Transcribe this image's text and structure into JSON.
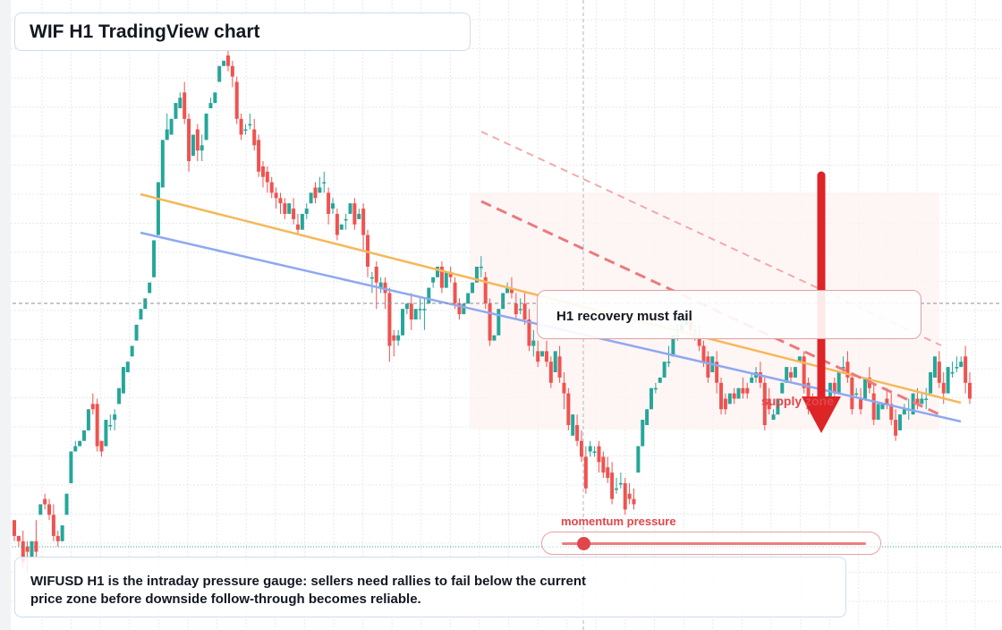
{
  "header": {
    "title": "WIF H1 TradingView chart"
  },
  "annotations": {
    "callout": "H1 recovery must fail",
    "supply_label": "supply zone",
    "momentum_label": "momentum pressure",
    "description": "WIFUSD H1 is the intraday pressure gauge: sellers need rallies to fail below the current price zone before downside follow-through becomes reliable."
  },
  "momentum": {
    "level": 0.07
  },
  "colors": {
    "up": "#26a69a",
    "down": "#ef5350",
    "orange_line": "#f5b85a",
    "blue_line": "#8fa8f0",
    "bear_arrow": "#dd2426",
    "supply_zone": "#fdf3f1",
    "grid": "#e6e9ef"
  },
  "chart_data": {
    "type": "candlestick",
    "symbol": "WIFUSD",
    "timeframe": "H1",
    "ylim": [
      0,
      100
    ],
    "candles": [
      [
        12,
        12,
        9,
        8
      ],
      [
        9,
        9,
        8,
        7
      ],
      [
        8,
        10,
        4,
        3
      ],
      [
        7,
        8,
        6,
        2
      ],
      [
        5,
        5,
        8,
        9
      ],
      [
        8,
        12,
        6,
        5
      ],
      [
        13,
        14,
        15,
        16
      ],
      [
        16,
        17,
        15,
        14
      ],
      [
        15,
        16,
        13,
        12
      ],
      [
        13,
        15,
        9,
        8
      ],
      [
        9,
        10,
        8,
        7
      ],
      [
        8,
        9,
        11,
        14
      ],
      [
        13,
        15,
        17,
        18
      ],
      [
        19,
        20,
        25,
        26
      ],
      [
        25,
        27,
        26,
        25
      ],
      [
        26,
        27,
        27,
        28
      ],
      [
        27,
        29,
        29,
        30
      ],
      [
        29,
        32,
        33,
        35
      ],
      [
        34,
        36,
        33,
        32
      ],
      [
        34,
        35,
        26,
        25
      ],
      [
        27,
        27,
        25,
        24
      ],
      [
        26,
        27,
        31,
        32
      ],
      [
        30,
        32,
        30,
        29
      ],
      [
        31,
        33,
        32,
        29
      ],
      [
        34,
        35,
        37,
        37
      ],
      [
        36,
        37,
        41,
        41
      ],
      [
        40,
        42,
        42,
        44
      ],
      [
        43,
        44,
        45,
        46
      ],
      [
        46,
        48,
        49,
        51
      ],
      [
        50,
        51,
        52,
        52
      ],
      [
        52,
        54,
        54,
        55
      ],
      [
        55,
        56,
        57,
        60
      ],
      [
        58,
        60,
        65,
        66
      ],
      [
        66,
        70,
        76,
        76
      ],
      [
        75,
        80,
        84,
        84
      ],
      [
        84,
        89,
        86,
        86
      ],
      [
        85,
        88,
        88,
        90
      ],
      [
        88,
        89,
        91,
        91
      ],
      [
        90,
        93,
        92,
        93
      ],
      [
        93,
        95,
        88,
        87
      ],
      [
        88,
        89,
        80,
        78
      ],
      [
        81,
        82,
        85,
        86
      ],
      [
        86,
        87,
        82,
        80
      ],
      [
        82,
        85,
        83,
        80
      ],
      [
        84,
        88,
        89,
        90
      ],
      [
        90,
        92,
        91,
        90
      ],
      [
        91,
        92,
        93,
        94
      ],
      [
        95,
        96,
        98,
        99
      ],
      [
        98,
        99,
        99,
        100
      ],
      [
        100,
        101,
        98,
        97
      ],
      [
        98,
        99,
        96,
        94
      ],
      [
        95,
        96,
        88,
        87
      ],
      [
        88,
        89,
        85,
        84
      ],
      [
        86,
        87,
        86,
        85
      ],
      [
        87,
        89,
        87,
        86
      ],
      [
        86,
        88,
        83,
        82
      ],
      [
        84,
        85,
        78,
        77
      ],
      [
        79,
        80,
        77,
        75
      ],
      [
        78,
        79,
        76,
        74
      ],
      [
        76,
        77,
        74,
        73
      ],
      [
        74,
        75,
        73,
        71
      ],
      [
        73,
        74,
        72,
        70
      ],
      [
        72,
        73,
        70,
        69
      ],
      [
        70,
        71,
        72,
        74
      ],
      [
        71,
        73,
        69,
        68
      ],
      [
        68,
        70,
        67,
        66
      ],
      [
        67,
        68,
        70,
        71
      ],
      [
        70,
        72,
        71,
        69
      ],
      [
        72,
        74,
        74,
        75
      ],
      [
        75,
        76,
        73,
        72
      ],
      [
        74,
        77,
        75,
        74
      ],
      [
        76,
        78,
        76,
        74
      ],
      [
        74,
        75,
        70,
        68
      ],
      [
        71,
        73,
        72,
        70
      ],
      [
        70,
        71,
        66,
        65
      ],
      [
        67,
        68,
        68,
        69
      ],
      [
        69,
        70,
        69,
        67
      ],
      [
        70,
        72,
        72,
        73
      ],
      [
        72,
        73,
        68,
        67
      ],
      [
        69,
        71,
        70,
        71
      ],
      [
        71,
        72,
        66,
        63
      ],
      [
        66,
        67,
        60,
        58
      ],
      [
        58,
        59,
        58,
        55
      ],
      [
        60,
        61,
        57,
        52
      ],
      [
        56,
        58,
        57,
        55
      ],
      [
        57,
        58,
        55,
        52
      ],
      [
        55,
        56,
        45,
        42
      ],
      [
        47,
        48,
        46,
        43
      ],
      [
        46,
        48,
        47,
        45
      ],
      [
        47,
        49,
        52,
        53
      ],
      [
        52,
        53,
        53,
        51
      ],
      [
        53,
        55,
        50,
        48
      ],
      [
        50,
        51,
        52,
        50
      ],
      [
        52,
        54,
        52,
        50
      ],
      [
        52,
        54,
        52,
        48
      ],
      [
        53,
        55,
        56,
        53
      ],
      [
        57,
        58,
        58,
        56
      ],
      [
        58,
        60,
        60,
        58
      ],
      [
        60,
        61,
        56,
        55
      ],
      [
        56,
        57,
        59,
        60
      ],
      [
        59,
        60,
        58,
        57
      ],
      [
        57,
        58,
        53,
        52
      ],
      [
        53,
        54,
        51,
        50
      ],
      [
        51,
        52,
        53,
        54
      ],
      [
        53,
        54,
        55,
        56
      ],
      [
        55,
        57,
        57,
        58
      ],
      [
        57,
        58,
        60,
        61
      ],
      [
        60,
        62,
        60,
        58
      ],
      [
        58,
        59,
        53,
        52
      ],
      [
        53,
        54,
        46,
        45
      ],
      [
        46,
        47,
        47,
        48
      ],
      [
        47,
        49,
        52,
        53
      ],
      [
        52,
        54,
        55,
        56
      ],
      [
        55,
        57,
        56,
        57
      ],
      [
        56,
        58,
        55,
        54
      ],
      [
        53,
        55,
        51,
        50
      ],
      [
        52,
        54,
        52,
        51
      ],
      [
        53,
        55,
        50,
        49
      ],
      [
        50,
        52,
        45,
        44
      ],
      [
        45,
        48,
        46,
        43
      ],
      [
        44,
        46,
        42,
        41
      ],
      [
        43,
        44,
        44,
        45
      ],
      [
        44,
        46,
        42,
        41
      ],
      [
        42,
        43,
        38,
        37
      ],
      [
        40,
        41,
        44,
        45
      ],
      [
        43,
        45,
        39,
        38
      ],
      [
        38,
        40,
        36,
        33
      ],
      [
        36,
        37,
        30,
        29
      ],
      [
        28,
        30,
        32,
        34
      ],
      [
        30,
        32,
        27,
        26
      ],
      [
        27,
        29,
        24,
        23
      ],
      [
        24,
        26,
        18,
        17
      ],
      [
        25,
        27,
        26,
        24
      ],
      [
        25,
        26,
        25,
        24
      ],
      [
        26,
        27,
        23,
        21
      ],
      [
        24,
        25,
        21,
        20
      ],
      [
        22,
        24,
        20,
        19
      ],
      [
        21,
        23,
        16,
        15
      ],
      [
        18,
        20,
        18,
        17
      ],
      [
        19,
        21,
        19,
        18
      ],
      [
        19,
        20,
        14,
        13
      ],
      [
        17,
        19,
        16,
        15
      ],
      [
        16,
        18,
        15,
        14
      ],
      [
        21,
        24,
        26,
        27
      ],
      [
        26,
        28,
        31,
        31
      ],
      [
        30,
        32,
        33,
        34
      ],
      [
        33,
        35,
        37,
        38
      ],
      [
        37,
        38,
        37,
        36
      ],
      [
        38,
        39,
        39,
        40
      ],
      [
        39,
        41,
        42,
        43
      ],
      [
        42,
        45,
        42,
        41
      ],
      [
        43,
        46,
        47,
        48
      ],
      [
        47,
        49,
        47,
        46
      ],
      [
        48,
        50,
        49,
        48
      ],
      [
        49,
        51,
        51,
        52
      ],
      [
        51,
        53,
        48,
        47
      ],
      [
        48,
        49,
        48,
        46
      ],
      [
        47,
        49,
        45,
        44
      ],
      [
        45,
        46,
        42,
        41
      ],
      [
        43,
        44,
        39,
        38
      ],
      [
        40,
        41,
        43,
        44
      ],
      [
        42,
        44,
        38,
        36
      ],
      [
        38,
        39,
        33,
        32
      ],
      [
        35,
        36,
        33,
        32
      ],
      [
        34,
        36,
        36,
        37
      ],
      [
        36,
        37,
        35,
        34
      ],
      [
        35,
        37,
        37,
        38
      ],
      [
        37,
        39,
        36,
        35
      ],
      [
        37,
        38,
        36,
        35
      ],
      [
        38,
        40,
        39,
        38
      ],
      [
        39,
        41,
        40,
        38
      ],
      [
        40,
        42,
        38,
        37
      ],
      [
        38,
        39,
        30,
        29
      ],
      [
        35,
        37,
        33,
        32
      ],
      [
        31,
        33,
        32,
        31
      ],
      [
        32,
        34,
        35,
        36
      ],
      [
        36,
        38,
        38,
        39
      ],
      [
        38,
        40,
        41,
        42
      ],
      [
        40,
        41,
        39,
        38
      ],
      [
        39,
        40,
        41,
        42
      ],
      [
        42,
        43,
        43,
        45
      ],
      [
        43,
        44,
        37,
        36
      ],
      [
        38,
        39,
        33,
        32
      ],
      [
        35,
        36,
        33,
        32
      ],
      [
        34,
        35,
        33,
        32
      ],
      [
        34,
        36,
        31,
        30
      ],
      [
        31,
        33,
        34,
        35
      ],
      [
        35,
        36,
        38,
        39
      ],
      [
        38,
        39,
        36,
        35
      ],
      [
        36,
        37,
        40,
        41
      ],
      [
        41,
        43,
        41,
        40
      ],
      [
        42,
        44,
        39,
        38
      ],
      [
        39,
        40,
        33,
        32
      ],
      [
        36,
        37,
        36,
        35
      ],
      [
        35,
        37,
        33,
        32
      ],
      [
        35,
        37,
        39,
        40
      ],
      [
        39,
        41,
        37,
        36
      ],
      [
        36,
        38,
        31,
        30
      ],
      [
        31,
        33,
        34,
        35
      ],
      [
        33,
        34,
        34,
        35
      ],
      [
        35,
        37,
        34,
        33
      ],
      [
        34,
        36,
        31,
        30
      ],
      [
        31,
        33,
        28,
        27
      ],
      [
        29,
        31,
        32,
        33
      ],
      [
        32,
        34,
        33,
        32
      ],
      [
        33,
        35,
        33,
        31
      ],
      [
        32,
        34,
        36,
        37
      ],
      [
        35,
        37,
        34,
        33
      ],
      [
        34,
        36,
        35,
        34
      ],
      [
        35,
        37,
        35,
        33
      ],
      [
        36,
        38,
        40,
        41
      ],
      [
        39,
        42,
        43,
        44
      ],
      [
        42,
        44,
        38,
        37
      ],
      [
        38,
        40,
        36,
        34
      ],
      [
        36,
        38,
        41,
        42
      ],
      [
        40,
        42,
        40,
        39
      ],
      [
        41,
        43,
        41,
        40
      ],
      [
        41,
        43,
        42,
        43
      ],
      [
        43,
        45,
        38,
        36
      ],
      [
        38,
        40,
        35,
        34
      ]
    ]
  }
}
